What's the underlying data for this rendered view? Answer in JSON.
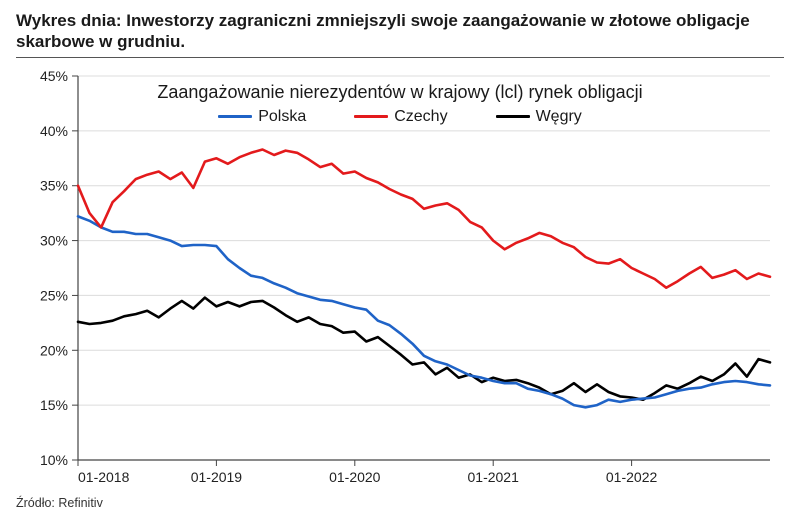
{
  "title": "Wykres dnia: Inwestorzy zagraniczni zmniejszyli swoje zaangażowanie w złotowe obligacje skarbowe w grudniu.",
  "source": "Źródło: Refinitiv",
  "chart": {
    "type": "line",
    "subtitle": "Zaangażowanie nierezydentów w krajowy (lcl) rynek obligacji",
    "background_color": "#ffffff",
    "title_fontsize": 18,
    "label_fontsize": 14,
    "legend_fontsize": 16,
    "line_width": 2.6,
    "x": {
      "min": 0,
      "max": 60,
      "tick_positions": [
        0,
        12,
        24,
        36,
        48
      ],
      "tick_labels": [
        "01-2018",
        "01-2019",
        "01-2020",
        "01-2021",
        "01-2022"
      ],
      "axis_color": "#444"
    },
    "y": {
      "min": 10,
      "max": 45,
      "tick_step": 5,
      "tick_suffix": "%",
      "grid_color": "#dcdcdc",
      "axis_color": "#444"
    },
    "legend": [
      {
        "label": "Polska",
        "color": "#1f63c7"
      },
      {
        "label": "Czechy",
        "color": "#e31a1c"
      },
      {
        "label": "Węgry",
        "color": "#000000"
      }
    ],
    "series": {
      "polska": {
        "color": "#1f63c7",
        "values": [
          32.2,
          31.8,
          31.2,
          30.8,
          30.8,
          30.6,
          30.6,
          30.3,
          30.0,
          29.5,
          29.6,
          29.6,
          29.5,
          28.3,
          27.5,
          26.8,
          26.6,
          26.1,
          25.7,
          25.2,
          24.9,
          24.6,
          24.5,
          24.2,
          23.9,
          23.7,
          22.7,
          22.3,
          21.5,
          20.6,
          19.5,
          19.0,
          18.7,
          18.2,
          17.7,
          17.5,
          17.2,
          17.0,
          17.0,
          16.5,
          16.3,
          16.0,
          15.6,
          15.0,
          14.8,
          15.0,
          15.5,
          15.3,
          15.5,
          15.6,
          15.7,
          16.0,
          16.3,
          16.5,
          16.6,
          16.9,
          17.1,
          17.2,
          17.1,
          16.9,
          16.8
        ]
      },
      "czechy": {
        "color": "#e31a1c",
        "values": [
          35.0,
          32.5,
          31.2,
          33.5,
          34.5,
          35.6,
          36.0,
          36.3,
          35.6,
          36.2,
          34.8,
          37.2,
          37.5,
          37.0,
          37.6,
          38.0,
          38.3,
          37.8,
          38.2,
          38.0,
          37.4,
          36.7,
          37.0,
          36.1,
          36.3,
          35.7,
          35.3,
          34.7,
          34.2,
          33.8,
          32.9,
          33.2,
          33.4,
          32.8,
          31.7,
          31.2,
          30.0,
          29.2,
          29.8,
          30.2,
          30.7,
          30.4,
          29.8,
          29.4,
          28.5,
          28.0,
          27.9,
          28.3,
          27.5,
          27.0,
          26.5,
          25.7,
          26.3,
          27.0,
          27.6,
          26.6,
          26.9,
          27.3,
          26.5,
          27.0,
          26.7
        ]
      },
      "wegry": {
        "color": "#000000",
        "values": [
          22.6,
          22.4,
          22.5,
          22.7,
          23.1,
          23.3,
          23.6,
          23.0,
          23.8,
          24.5,
          23.8,
          24.8,
          24.0,
          24.4,
          24.0,
          24.4,
          24.5,
          23.9,
          23.2,
          22.6,
          23.0,
          22.4,
          22.2,
          21.6,
          21.7,
          20.8,
          21.2,
          20.4,
          19.6,
          18.7,
          18.9,
          17.8,
          18.4,
          17.5,
          17.8,
          17.1,
          17.5,
          17.2,
          17.3,
          17.0,
          16.6,
          16.0,
          16.3,
          17.0,
          16.2,
          16.9,
          16.2,
          15.8,
          15.7,
          15.5,
          16.1,
          16.8,
          16.5,
          17.0,
          17.6,
          17.2,
          17.8,
          18.8,
          17.6,
          19.2,
          18.9
        ]
      }
    }
  }
}
